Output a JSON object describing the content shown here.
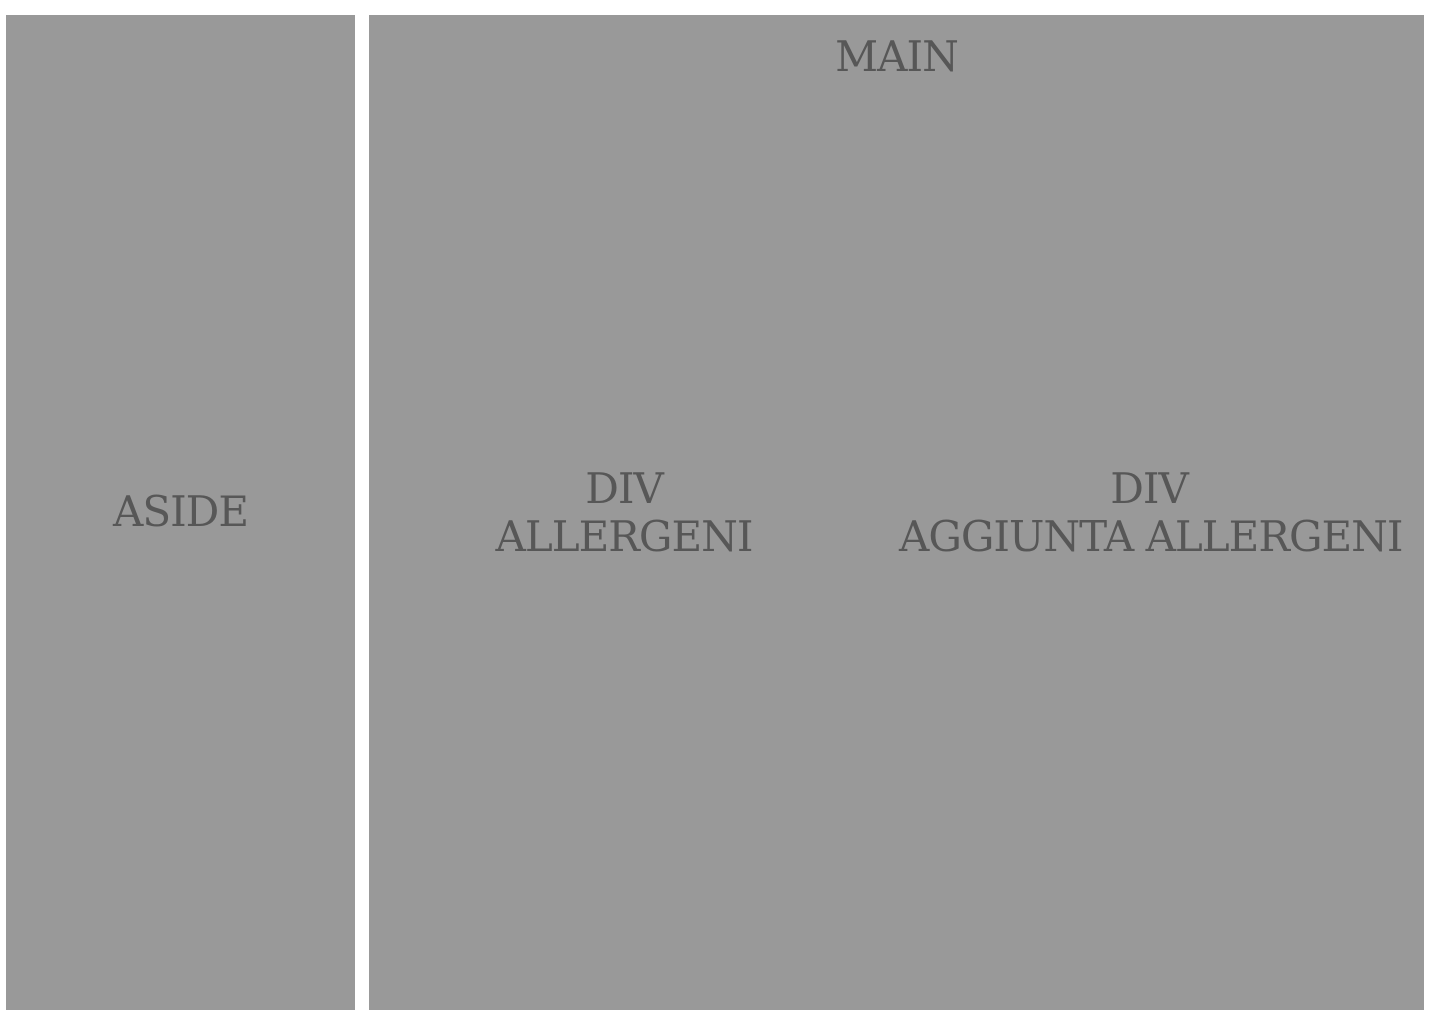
{
  "aside": {
    "label": "ASIDE"
  },
  "main": {
    "label": "MAIN",
    "divs": [
      {
        "line1": "DIV",
        "line2": "ALLERGENI"
      },
      {
        "line1": "DIV",
        "line2": "AGGIUNTA ALLERGENI"
      }
    ]
  },
  "colors": {
    "panel": "#999999",
    "text": "#575757",
    "background": "#ffffff"
  }
}
